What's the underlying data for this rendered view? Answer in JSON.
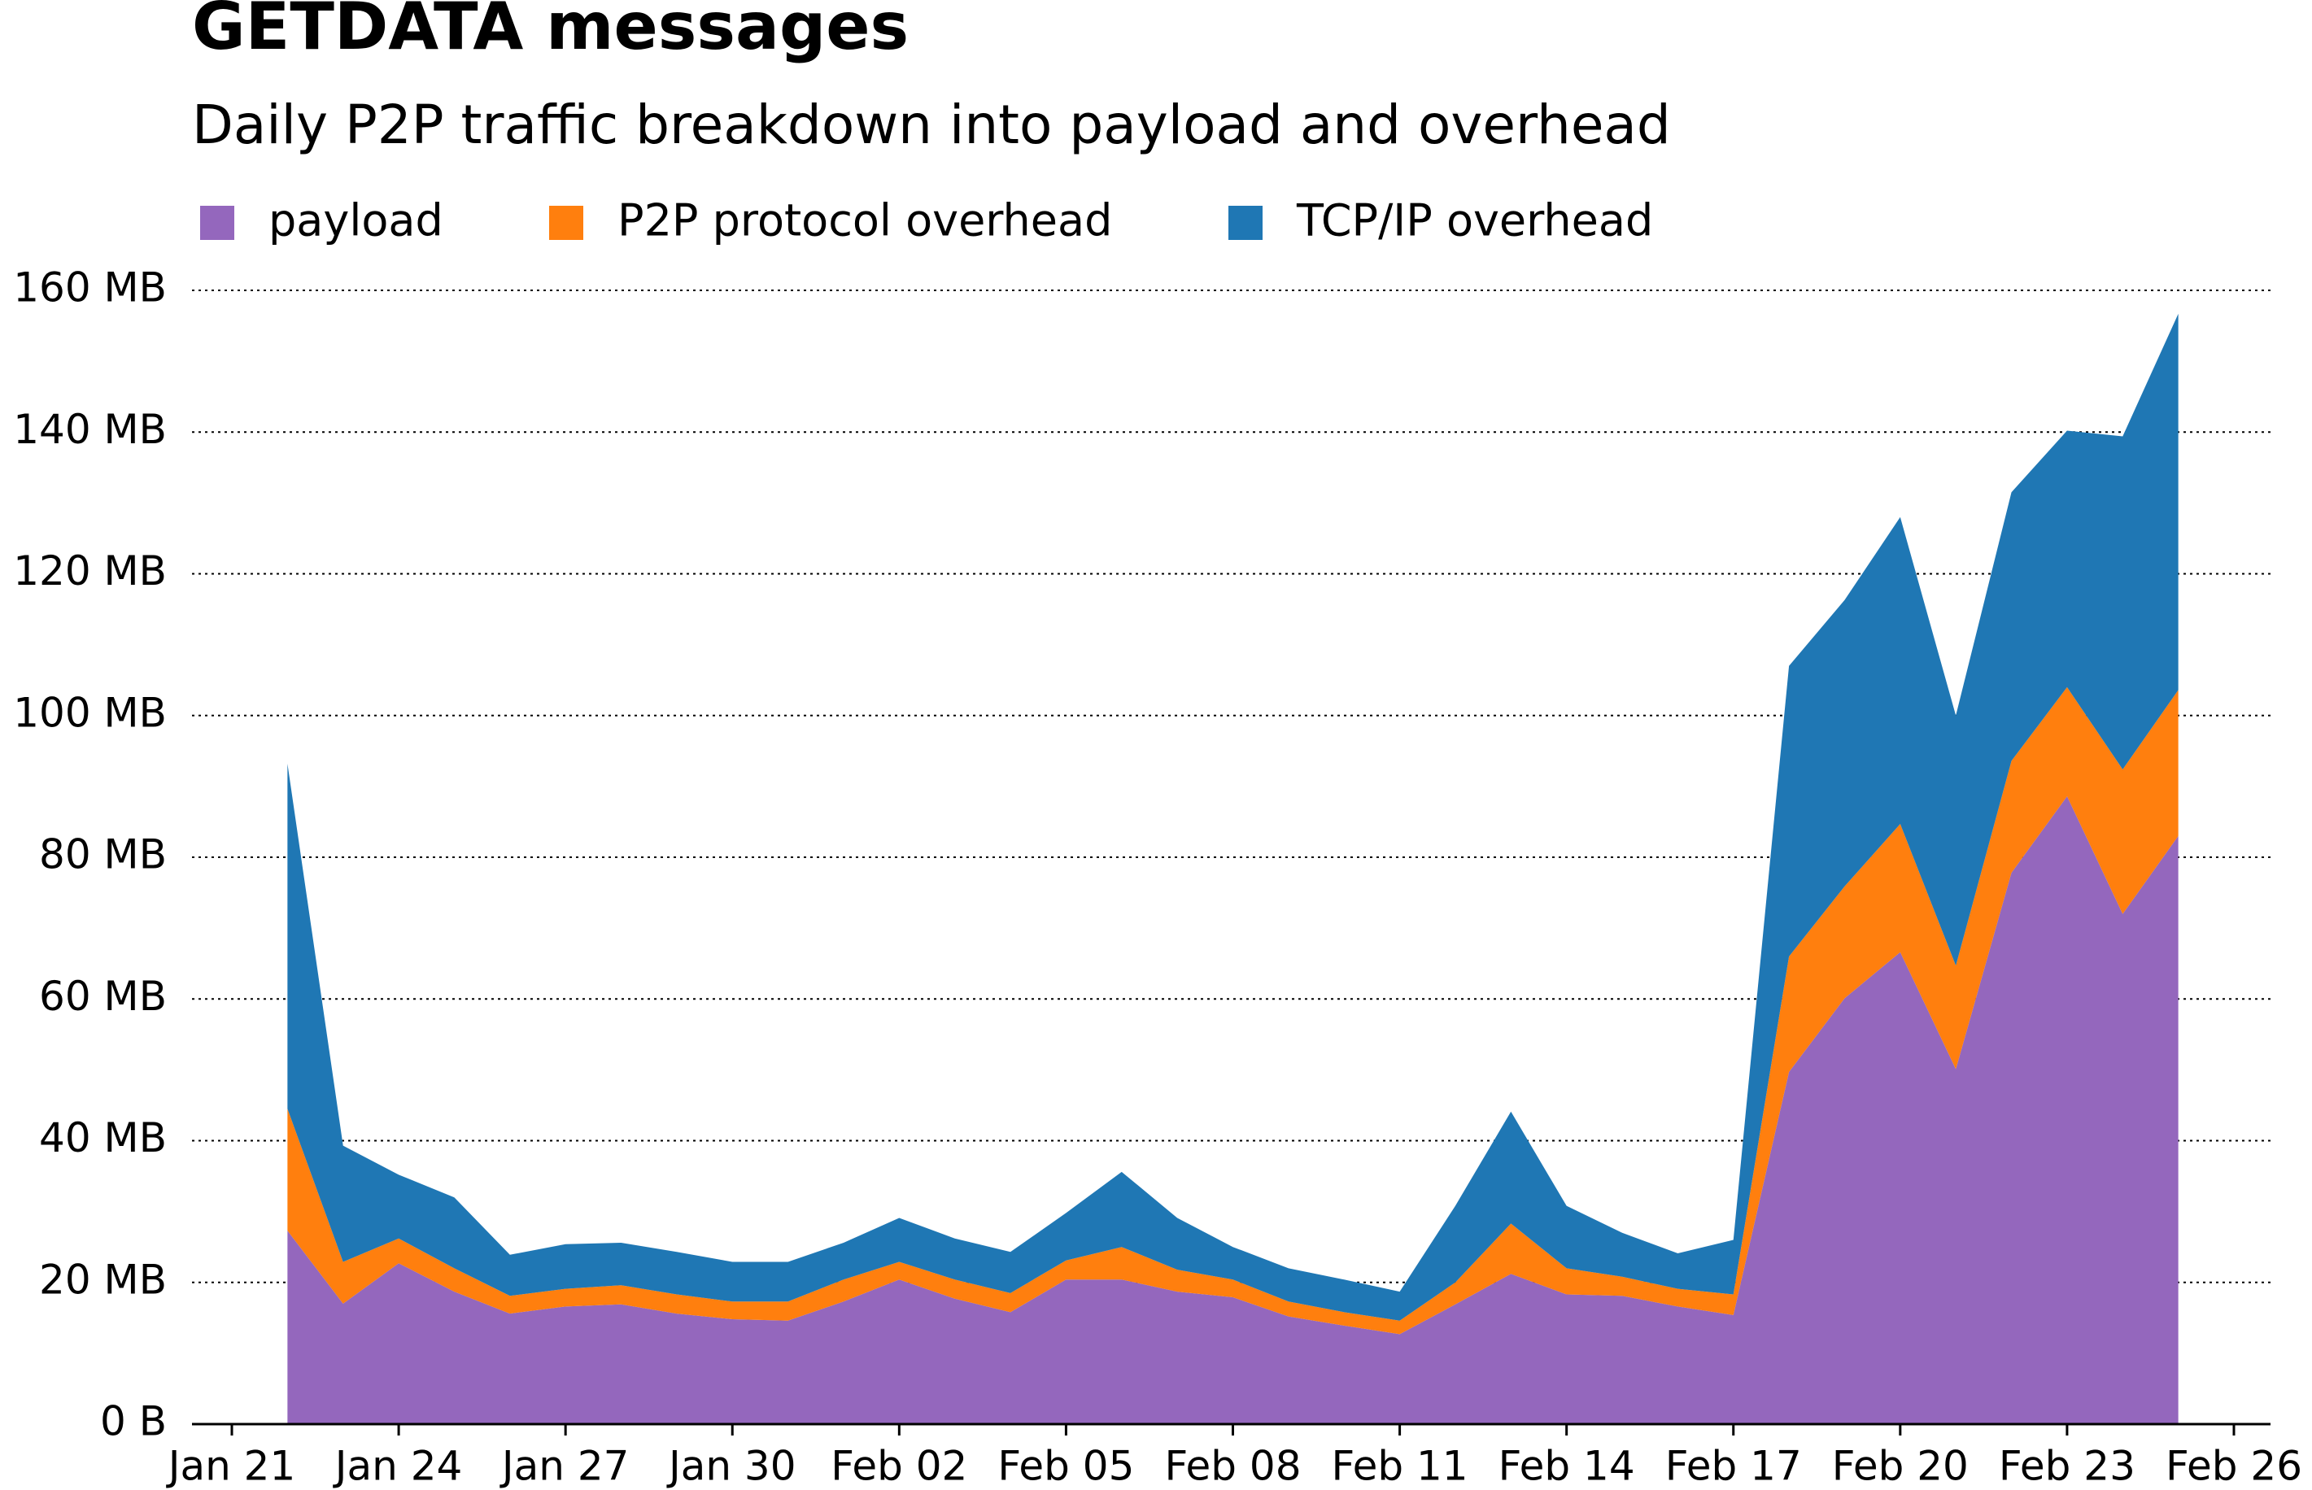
{
  "chart_data": {
    "type": "area",
    "stacked": true,
    "title": "GETDATA messages",
    "subtitle": "Daily P2P traffic breakdown into payload and overhead",
    "x": [
      "Jan 22",
      "Jan 23",
      "Jan 24",
      "Jan 25",
      "Jan 26",
      "Jan 27",
      "Jan 28",
      "Jan 29",
      "Jan 30",
      "Jan 31",
      "Feb 01",
      "Feb 02",
      "Feb 03",
      "Feb 04",
      "Feb 05",
      "Feb 06",
      "Feb 07",
      "Feb 08",
      "Feb 09",
      "Feb 10",
      "Feb 11",
      "Feb 12",
      "Feb 13",
      "Feb 14",
      "Feb 15",
      "Feb 16",
      "Feb 17",
      "Feb 18",
      "Feb 19",
      "Feb 20",
      "Feb 21",
      "Feb 22",
      "Feb 23",
      "Feb 24",
      "Feb 25"
    ],
    "series": [
      {
        "name": "payload",
        "color": "#9467bd",
        "values": [
          27.3,
          17,
          22.7,
          18.7,
          15.6,
          16.6,
          16.9,
          15.6,
          14.8,
          14.6,
          17.3,
          20.4,
          17.7,
          15.8,
          20.4,
          20.4,
          18.7,
          17.9,
          15.2,
          13.9,
          12.7,
          16.9,
          21.2,
          18.3,
          18.1,
          16.6,
          15.4,
          49.7,
          60.1,
          66.6,
          50.1,
          77.8,
          88.6,
          72,
          83
        ]
      },
      {
        "name": "P2P protocol overhead",
        "color": "#ff7f0e",
        "values": [
          17.2,
          5.9,
          3.5,
          3.3,
          2.5,
          2.5,
          2.7,
          2.7,
          2.5,
          2.7,
          3.1,
          2.5,
          2.7,
          2.7,
          2.7,
          4.6,
          3.1,
          2.5,
          2.1,
          1.9,
          1.9,
          3.1,
          7.1,
          3.7,
          2.7,
          2.5,
          2.9,
          16.3,
          15.8,
          18.1,
          14.6,
          15.8,
          15.4,
          20.4,
          20.6
        ]
      },
      {
        "name": "TCP/IP overhead",
        "color": "#1f77b4",
        "values": [
          48.7,
          16.4,
          9.0,
          10.0,
          5.8,
          6.3,
          6.0,
          6.0,
          5.6,
          5.6,
          5.2,
          6.2,
          5.8,
          5.8,
          6.7,
          10.6,
          7.3,
          4.6,
          4.7,
          4.6,
          4.1,
          10.8,
          15.8,
          8.8,
          6.2,
          5.0,
          7.7,
          41.0,
          40.4,
          43.3,
          35.3,
          37.9,
          36.2,
          47.0,
          53.1
        ]
      }
    ],
    "xlim": [
      "Jan 21",
      "Feb 26"
    ],
    "xticks": [
      "Jan 21",
      "Jan 24",
      "Jan 27",
      "Jan 30",
      "Feb 02",
      "Feb 05",
      "Feb 08",
      "Feb 11",
      "Feb 14",
      "Feb 17",
      "Feb 20",
      "Feb 23",
      "Feb 26"
    ],
    "ylim": [
      0,
      160
    ],
    "yticks": [
      {
        "value": 0,
        "label": "0 B"
      },
      {
        "value": 20,
        "label": "20 MB"
      },
      {
        "value": 40,
        "label": "40 MB"
      },
      {
        "value": 60,
        "label": "60 MB"
      },
      {
        "value": 80,
        "label": "80 MB"
      },
      {
        "value": 100,
        "label": "100 MB"
      },
      {
        "value": 120,
        "label": "120 MB"
      },
      {
        "value": 140,
        "label": "140 MB"
      },
      {
        "value": 160,
        "label": "160 MB"
      }
    ],
    "grid": true,
    "legend": "top"
  }
}
